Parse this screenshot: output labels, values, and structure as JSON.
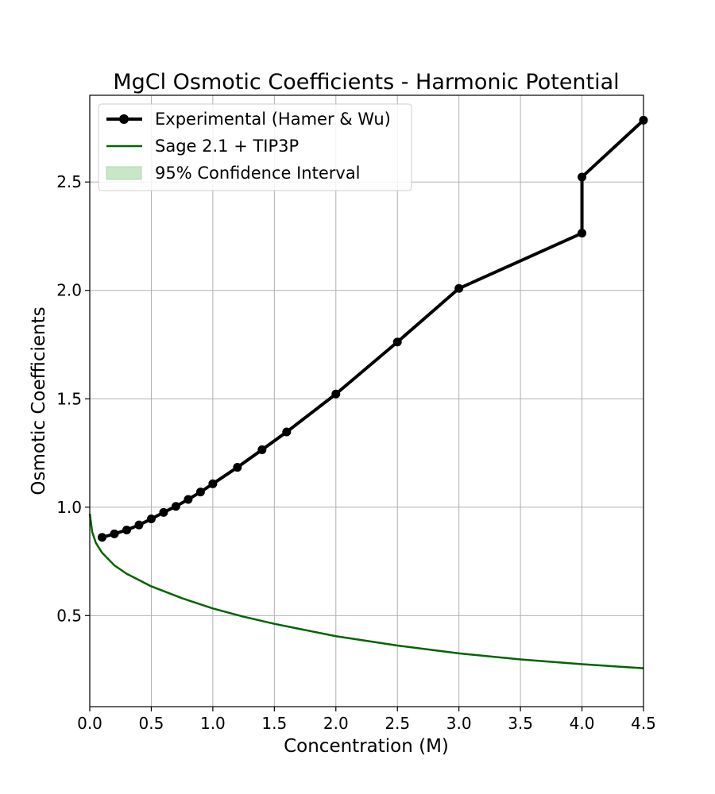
{
  "chart_data": {
    "type": "line",
    "title": "MgCl Osmotic Coefficients - Harmonic Potential",
    "xlabel": "Concentration (M)",
    "ylabel": "Osmotic Coefficients",
    "xlim": [
      0.0,
      4.5
    ],
    "ylim": [
      0.08,
      2.9
    ],
    "xticks": [
      "0.0",
      "0.5",
      "1.0",
      "1.5",
      "2.0",
      "2.5",
      "3.0",
      "3.5",
      "4.0",
      "4.5"
    ],
    "yticks": [
      "0.5",
      "1.0",
      "1.5",
      "2.0",
      "2.5"
    ],
    "grid": true,
    "legend_position": "top-left",
    "series": [
      {
        "name": "Experimental (Hamer & Wu)",
        "style": "line-markers",
        "color": "#000000",
        "x": [
          0.1,
          0.2,
          0.3,
          0.4,
          0.5,
          0.6,
          0.7,
          0.8,
          0.9,
          1.0,
          1.2,
          1.4,
          1.6,
          2.0,
          2.5,
          3.0,
          4.0,
          4.0,
          4.5
        ],
        "y": [
          0.861,
          0.877,
          0.895,
          0.918,
          0.946,
          0.976,
          1.004,
          1.036,
          1.07,
          1.108,
          1.184,
          1.265,
          1.347,
          1.522,
          1.762,
          2.009,
          2.264,
          2.523,
          2.785
        ]
      },
      {
        "name": "Sage 2.1 + TIP3P",
        "style": "line",
        "color": "#006400",
        "x": [
          0.0,
          0.02,
          0.05,
          0.1,
          0.2,
          0.3,
          0.5,
          0.75,
          1.0,
          1.25,
          1.5,
          2.0,
          2.5,
          3.0,
          3.5,
          4.0,
          4.5
        ],
        "y": [
          0.97,
          0.885,
          0.835,
          0.79,
          0.732,
          0.693,
          0.635,
          0.58,
          0.533,
          0.495,
          0.462,
          0.405,
          0.362,
          0.326,
          0.298,
          0.276,
          0.257
        ]
      }
    ],
    "legend_extra": {
      "name": "95% Confidence Interval",
      "color": "#c8e6c8"
    }
  }
}
